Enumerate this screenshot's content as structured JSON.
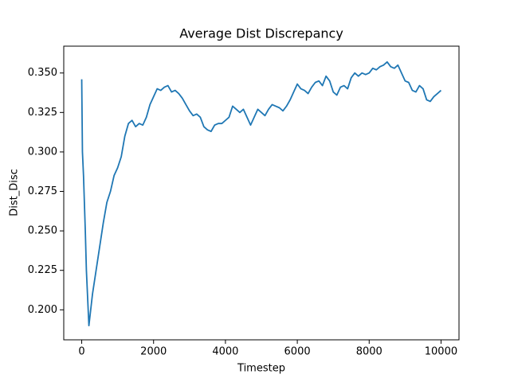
{
  "chart_data": {
    "type": "line",
    "title": "Average Dist Discrepancy",
    "x_label": "Timestep",
    "y_label": "Dist_Disc",
    "x": [
      0,
      20,
      50,
      100,
      130,
      200,
      300,
      400,
      500,
      600,
      700,
      800,
      900,
      1000,
      1100,
      1200,
      1300,
      1400,
      1500,
      1600,
      1700,
      1800,
      1900,
      2000,
      2100,
      2200,
      2300,
      2400,
      2500,
      2600,
      2700,
      2800,
      2900,
      3000,
      3100,
      3200,
      3300,
      3400,
      3500,
      3600,
      3700,
      3800,
      3900,
      4000,
      4100,
      4200,
      4300,
      4400,
      4500,
      4600,
      4700,
      4800,
      4900,
      5000,
      5100,
      5200,
      5300,
      5400,
      5500,
      5600,
      5700,
      5800,
      5900,
      6000,
      6100,
      6200,
      6300,
      6400,
      6500,
      6600,
      6700,
      6800,
      6900,
      7000,
      7100,
      7200,
      7300,
      7400,
      7500,
      7600,
      7700,
      7800,
      7900,
      8000,
      8100,
      8200,
      8300,
      8400,
      8500,
      8600,
      8700,
      8800,
      8900,
      9000,
      9100,
      9200,
      9300,
      9400,
      9500,
      9600,
      9700,
      9800,
      9900,
      10000
    ],
    "series": [
      {
        "name": "Dist_Disc",
        "color": "#1f77b4",
        "values": [
          0.346,
          0.3,
          0.285,
          0.25,
          0.225,
          0.19,
          0.21,
          0.225,
          0.24,
          0.255,
          0.268,
          0.275,
          0.285,
          0.29,
          0.297,
          0.31,
          0.318,
          0.32,
          0.316,
          0.318,
          0.317,
          0.322,
          0.33,
          0.335,
          0.34,
          0.339,
          0.341,
          0.342,
          0.338,
          0.339,
          0.337,
          0.334,
          0.33,
          0.326,
          0.323,
          0.324,
          0.322,
          0.316,
          0.314,
          0.313,
          0.317,
          0.318,
          0.318,
          0.32,
          0.322,
          0.329,
          0.327,
          0.325,
          0.327,
          0.322,
          0.317,
          0.322,
          0.327,
          0.325,
          0.323,
          0.327,
          0.33,
          0.329,
          0.328,
          0.326,
          0.329,
          0.333,
          0.338,
          0.343,
          0.34,
          0.339,
          0.337,
          0.341,
          0.344,
          0.345,
          0.342,
          0.348,
          0.345,
          0.338,
          0.336,
          0.341,
          0.342,
          0.34,
          0.347,
          0.35,
          0.348,
          0.35,
          0.349,
          0.35,
          0.353,
          0.352,
          0.354,
          0.355,
          0.357,
          0.354,
          0.353,
          0.355,
          0.35,
          0.345,
          0.344,
          0.339,
          0.338,
          0.342,
          0.34,
          0.333,
          0.332,
          0.335,
          0.337,
          0.339
        ]
      }
    ],
    "xlim": [
      -500,
      10500
    ],
    "ylim": [
      0.181,
      0.367
    ],
    "xticks": [
      0,
      2000,
      4000,
      6000,
      8000,
      10000
    ],
    "yticks": [
      {
        "value": 0.2,
        "label": "0.200"
      },
      0.225,
      {
        "value": 0.25,
        "label": "0.250"
      },
      0.275,
      {
        "value": 0.3,
        "label": "0.300"
      },
      0.325,
      {
        "value": 0.35,
        "label": "0.350"
      }
    ]
  }
}
